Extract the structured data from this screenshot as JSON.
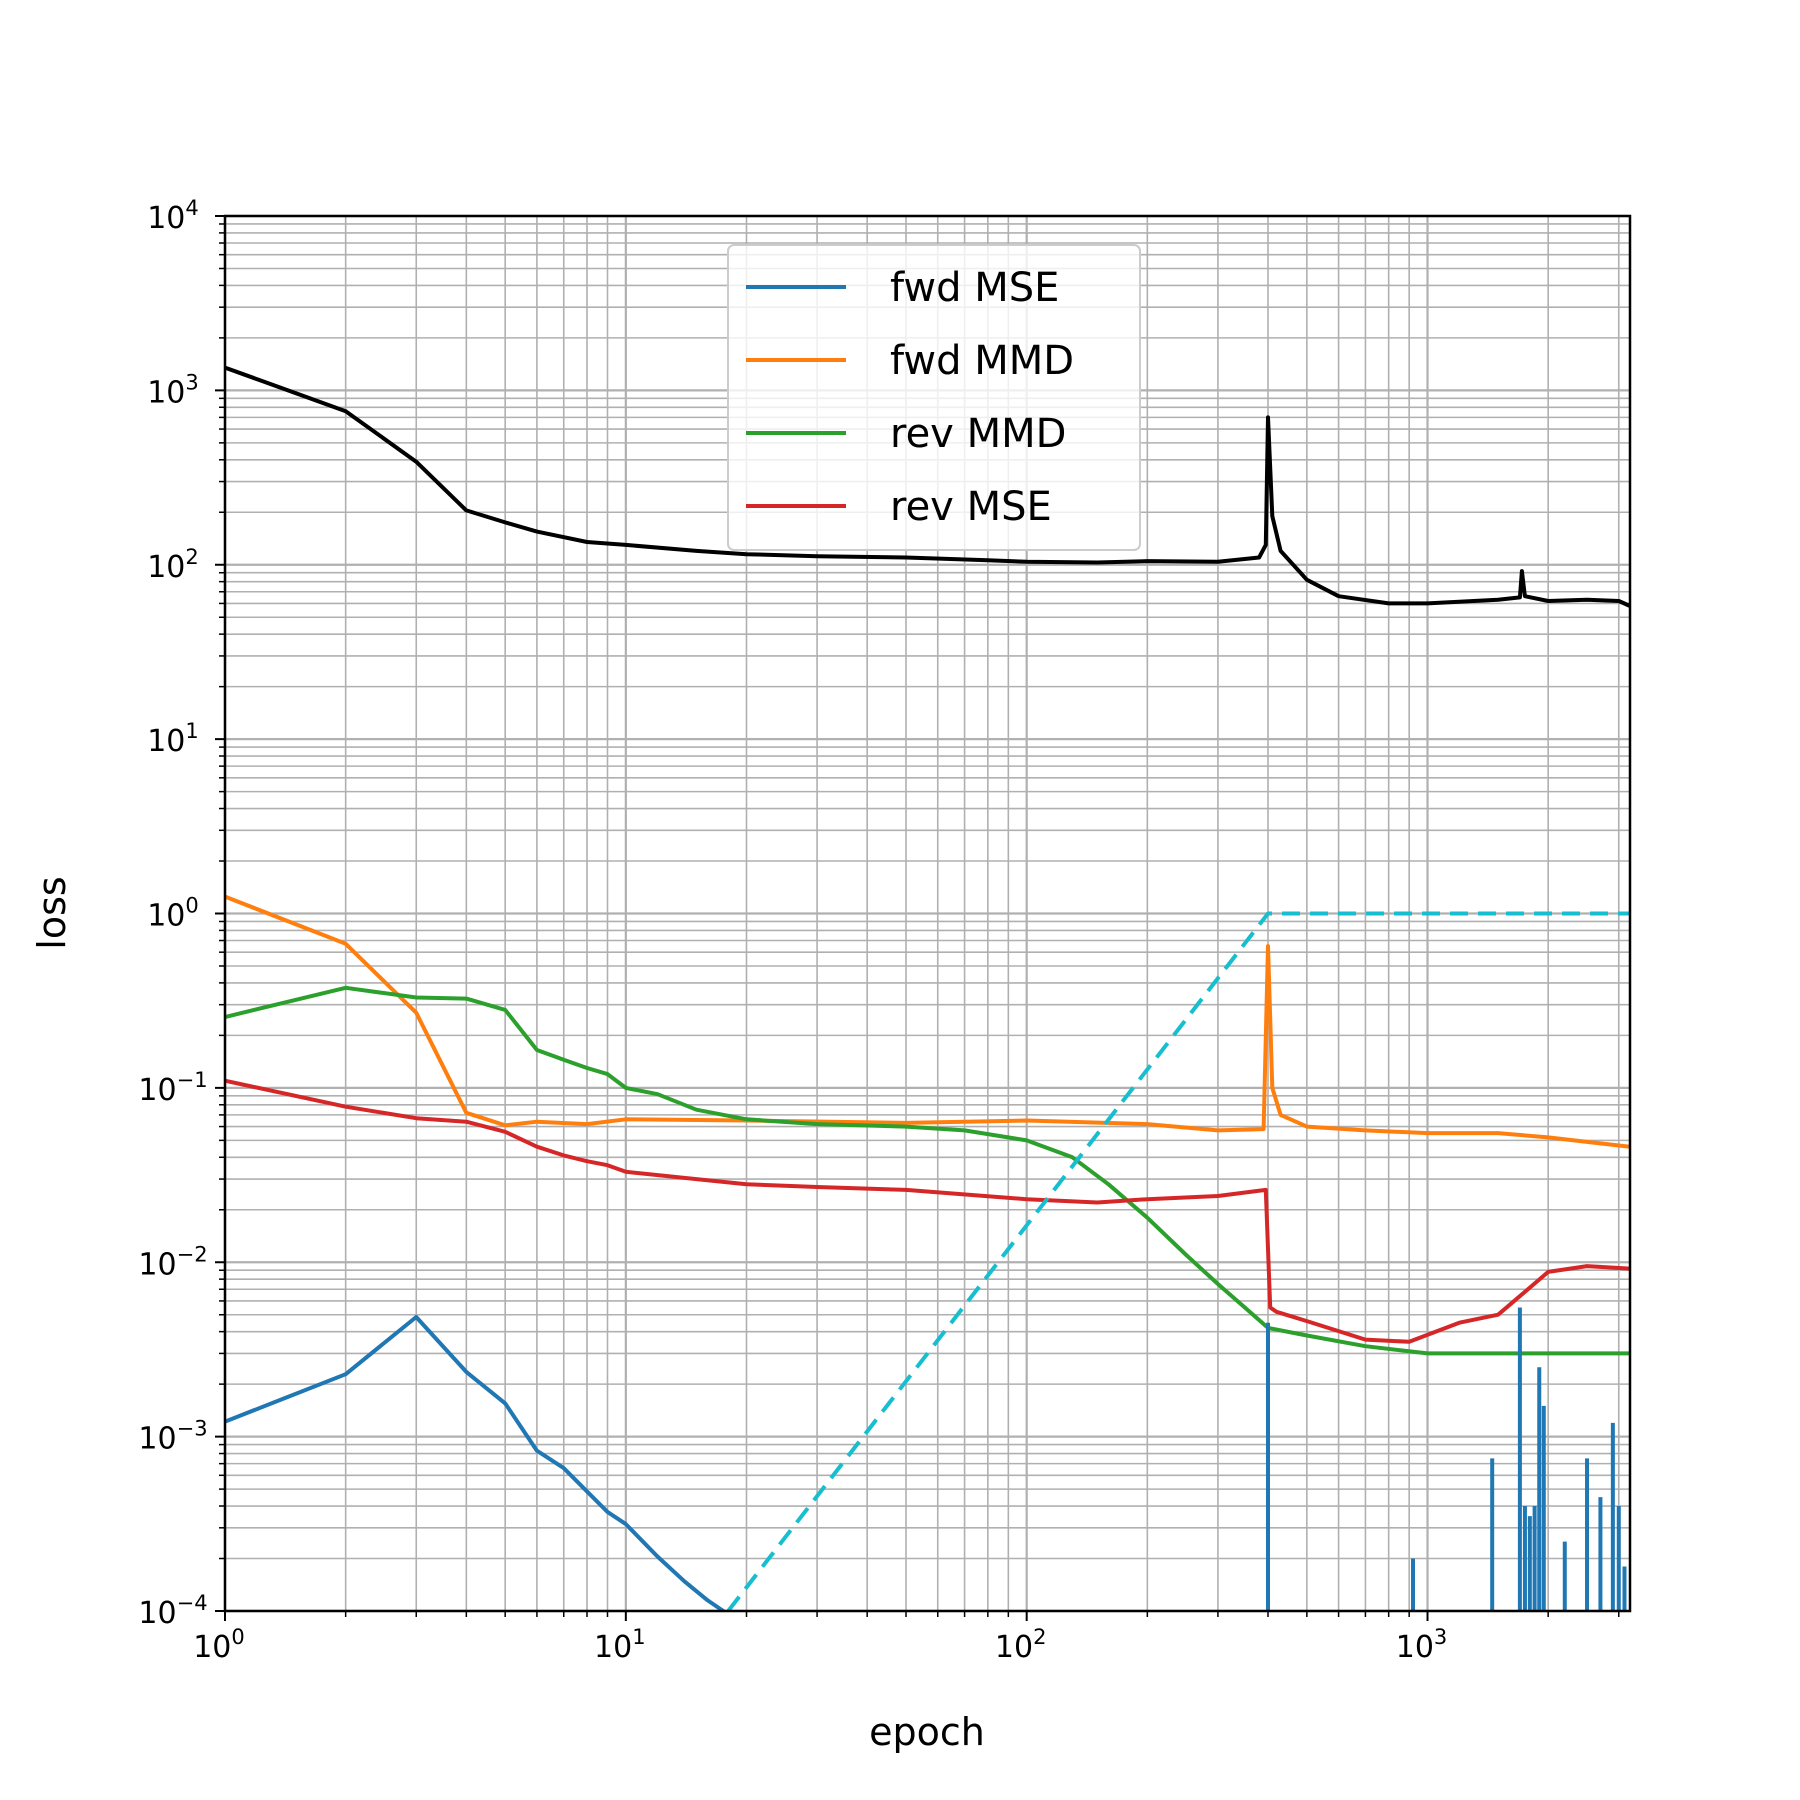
{
  "chart_data": {
    "type": "line",
    "title": "",
    "xlabel": "epoch",
    "ylabel": "loss",
    "xscale": "log",
    "yscale": "log",
    "xlim": [
      1,
      3200
    ],
    "ylim": [
      0.0001,
      10000
    ],
    "grid": "major and minor",
    "legend_position": "upper center",
    "x_tick_labels": [
      {
        "value": 1,
        "base": "10",
        "exp": "0"
      },
      {
        "value": 10,
        "base": "10",
        "exp": "1"
      },
      {
        "value": 100,
        "base": "10",
        "exp": "2"
      },
      {
        "value": 1000,
        "base": "10",
        "exp": "3"
      }
    ],
    "y_tick_labels": [
      {
        "value": 0.0001,
        "base": "10",
        "exp": "−4"
      },
      {
        "value": 0.001,
        "base": "10",
        "exp": "−3"
      },
      {
        "value": 0.01,
        "base": "10",
        "exp": "−2"
      },
      {
        "value": 0.1,
        "base": "10",
        "exp": "−1"
      },
      {
        "value": 1,
        "base": "10",
        "exp": "0"
      },
      {
        "value": 10,
        "base": "10",
        "exp": "1"
      },
      {
        "value": 100,
        "base": "10",
        "exp": "2"
      },
      {
        "value": 1000,
        "base": "10",
        "exp": "3"
      },
      {
        "value": 10000,
        "base": "10",
        "exp": "4"
      }
    ],
    "series": [
      {
        "name": "",
        "color": "#000000",
        "dash": "solid",
        "x": [
          1,
          2,
          3,
          4,
          5,
          6,
          8,
          10,
          15,
          20,
          30,
          50,
          80,
          100,
          150,
          200,
          300,
          380,
          395,
          400,
          410,
          430,
          500,
          600,
          800,
          1000,
          1500,
          1700,
          1720,
          1750,
          2000,
          2500,
          3000,
          3200
        ],
        "y": [
          1350,
          760,
          390,
          205,
          175,
          155,
          135,
          130,
          120,
          115,
          112,
          110,
          106,
          104,
          103,
          105,
          104,
          110,
          130,
          700,
          190,
          120,
          82,
          66,
          60,
          60,
          63,
          65,
          92,
          66,
          62,
          63,
          62,
          58
        ]
      },
      {
        "name": "fwd MSE",
        "color": "#1f77b4",
        "dash": "solid",
        "x": [
          1,
          2,
          3,
          4,
          5,
          6,
          7,
          8,
          9,
          10,
          12,
          14,
          16,
          17.5
        ],
        "y": [
          0.00122,
          0.00228,
          0.00485,
          0.00235,
          0.00155,
          0.00083,
          0.00066,
          0.000485,
          0.00037,
          0.000315,
          0.000205,
          0.000148,
          0.000115,
          0.0001
        ]
      },
      {
        "name": "fwd MMD",
        "color": "#ff7f0e",
        "dash": "solid",
        "x": [
          1,
          2,
          3,
          4,
          5,
          6,
          8,
          10,
          20,
          50,
          100,
          200,
          300,
          390,
          400,
          410,
          430,
          500,
          700,
          1000,
          1500,
          2000,
          2500,
          3200
        ],
        "y": [
          1.25,
          0.67,
          0.27,
          0.072,
          0.061,
          0.064,
          0.062,
          0.066,
          0.065,
          0.063,
          0.065,
          0.062,
          0.057,
          0.058,
          0.65,
          0.1,
          0.07,
          0.06,
          0.057,
          0.055,
          0.055,
          0.052,
          0.049,
          0.046
        ]
      },
      {
        "name": "rev MMD",
        "color": "#2ca02c",
        "dash": "solid",
        "x": [
          1,
          2,
          3,
          4,
          5,
          6,
          7,
          8,
          9,
          10,
          12,
          15,
          20,
          30,
          50,
          70,
          100,
          130,
          160,
          200,
          250,
          300,
          350,
          400,
          500,
          700,
          1000,
          1500,
          2000,
          3200
        ],
        "y": [
          0.255,
          0.375,
          0.33,
          0.325,
          0.28,
          0.165,
          0.145,
          0.13,
          0.12,
          0.1,
          0.092,
          0.075,
          0.066,
          0.062,
          0.06,
          0.057,
          0.05,
          0.04,
          0.028,
          0.018,
          0.011,
          0.0075,
          0.0055,
          0.0042,
          0.0038,
          0.0033,
          0.003,
          0.003,
          0.003,
          0.003
        ]
      },
      {
        "name": "rev MSE",
        "color": "#d62728",
        "dash": "solid",
        "x": [
          1,
          2,
          3,
          4,
          5,
          6,
          7,
          8,
          9,
          10,
          15,
          20,
          30,
          50,
          100,
          150,
          200,
          300,
          395,
          405,
          420,
          500,
          700,
          900,
          1200,
          1500,
          2000,
          2500,
          3200
        ],
        "y": [
          0.11,
          0.078,
          0.067,
          0.064,
          0.056,
          0.046,
          0.041,
          0.038,
          0.036,
          0.033,
          0.03,
          0.028,
          0.027,
          0.026,
          0.023,
          0.022,
          0.023,
          0.024,
          0.026,
          0.0055,
          0.0052,
          0.0046,
          0.0036,
          0.0035,
          0.0045,
          0.005,
          0.0088,
          0.0095,
          0.0092
        ]
      },
      {
        "name": "",
        "color": "#17becf",
        "dash": "dashed",
        "x": [
          18,
          400,
          3200
        ],
        "y": [
          0.0001,
          1,
          1
        ]
      }
    ],
    "spikes": {
      "color": "#1f77b4",
      "x": [
        400,
        920,
        1450,
        1700,
        1750,
        1800,
        1850,
        1900,
        1950,
        2200,
        2500,
        2700,
        2900,
        3000,
        3100
      ],
      "y": [
        0.0045,
        0.0002,
        0.00075,
        0.0055,
        0.0004,
        0.00035,
        0.0004,
        0.0025,
        0.0015,
        0.00025,
        0.00075,
        0.00045,
        0.0012,
        0.0004,
        0.00018
      ]
    }
  }
}
